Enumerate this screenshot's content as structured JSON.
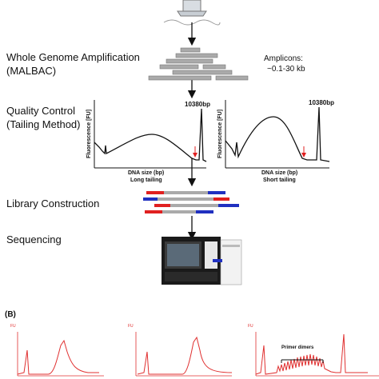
{
  "steps": {
    "wga_line1": "Whole Genome Amplification",
    "wga_line2": "(MALBAC)",
    "qc_line1": "Quality Control",
    "qc_line2": "(Tailing Method)",
    "library": "Library Construction",
    "sequencing": "Sequencing"
  },
  "amplicons": {
    "line1": "Amplicons:",
    "line2": "~0.1-30 kb"
  },
  "plot_long": {
    "ylabel": "Fluorescence [FU]",
    "peak": "10380bp",
    "xlabel": "DNA size (bp)",
    "caption": "Long tailing"
  },
  "plot_short": {
    "ylabel": "Fluorescence [FU]",
    "peak": "10380bp",
    "xlabel": "DNA size (bp)",
    "caption": "Short tailing"
  },
  "panel_b": {
    "label": "(B)",
    "unit": "FU",
    "primer_dimers": "Primer dimers"
  },
  "colors": {
    "fragment": "#aaaaaa",
    "red_adapter": "#e02020",
    "blue_adapter": "#2030c0",
    "trace_red": "#e03030",
    "arrow_red": "#e02020"
  }
}
